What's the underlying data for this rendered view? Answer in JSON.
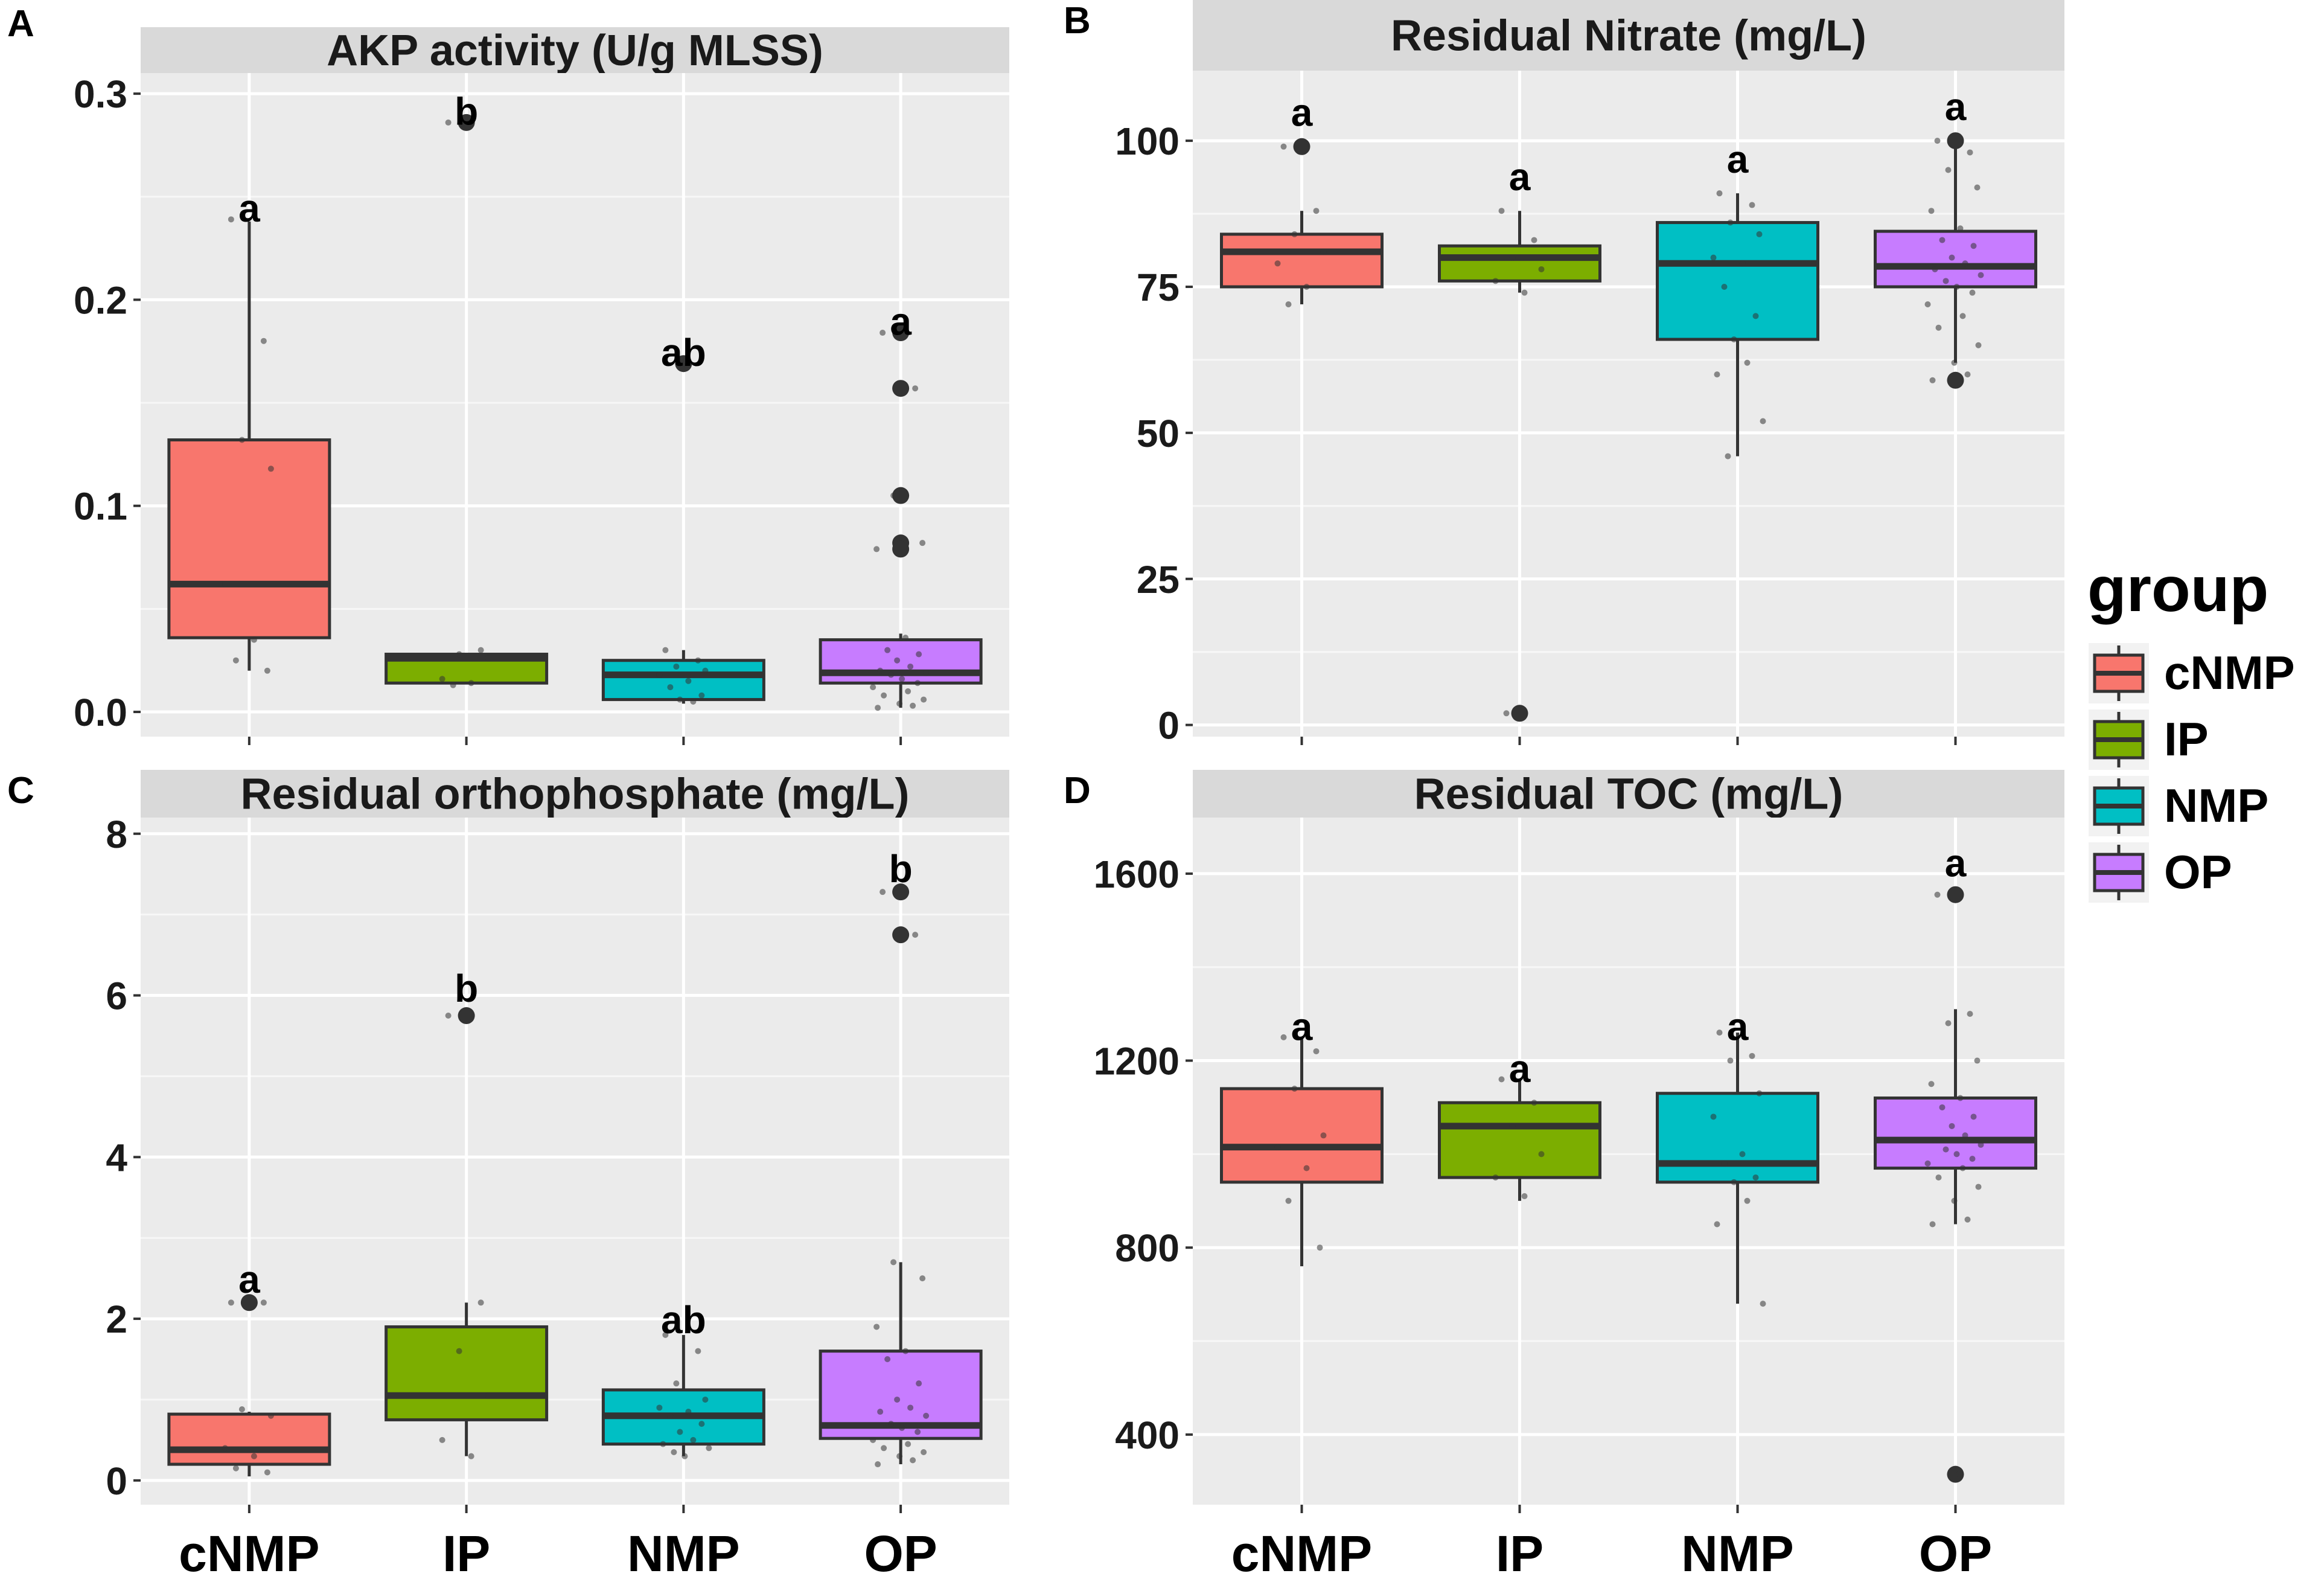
{
  "legend": {
    "title": "group",
    "groups": [
      {
        "name": "cNMP",
        "color": "#F8766D"
      },
      {
        "name": "IP",
        "color": "#7CAE00"
      },
      {
        "name": "NMP",
        "color": "#00BFC4"
      },
      {
        "name": "OP",
        "color": "#C77CFF"
      }
    ]
  },
  "chart_data": [
    {
      "type": "box",
      "panel_letter": "A",
      "title": "AKP activity (U/g MLSS)",
      "categories": [
        "cNMP",
        "IP",
        "NMP",
        "OP"
      ],
      "show_x_tick_labels": false,
      "ylim": [
        -0.012,
        0.31
      ],
      "y_ticks": [
        0.0,
        0.1,
        0.2,
        0.3
      ],
      "y_tick_labels": [
        "0.0",
        "0.1",
        "0.2",
        "0.3"
      ],
      "boxes": [
        {
          "q1": 0.036,
          "median": 0.062,
          "q3": 0.132,
          "whisker_low": 0.02,
          "whisker_high": 0.238,
          "outliers": []
        },
        {
          "q1": 0.014,
          "median": 0.026,
          "q3": 0.028,
          "whisker_low": 0.014,
          "whisker_high": 0.028,
          "outliers": [
            0.286
          ]
        },
        {
          "q1": 0.006,
          "median": 0.018,
          "q3": 0.025,
          "whisker_low": 0.004,
          "whisker_high": 0.03,
          "outliers": [
            0.169
          ]
        },
        {
          "q1": 0.014,
          "median": 0.019,
          "q3": 0.035,
          "whisker_low": 0.002,
          "whisker_high": 0.038,
          "outliers": [
            0.184,
            0.157,
            0.105,
            0.082,
            0.079
          ]
        }
      ],
      "points": [
        [
          0.239,
          0.18,
          0.132,
          0.118,
          0.062,
          0.035,
          0.025,
          0.02
        ],
        [
          0.286,
          0.03,
          0.028,
          0.026,
          0.016,
          0.014,
          0.013
        ],
        [
          0.03,
          0.025,
          0.022,
          0.02,
          0.018,
          0.015,
          0.012,
          0.008,
          0.006,
          0.005
        ],
        [
          0.184,
          0.157,
          0.105,
          0.082,
          0.079,
          0.036,
          0.03,
          0.028,
          0.025,
          0.022,
          0.02,
          0.019,
          0.018,
          0.016,
          0.014,
          0.012,
          0.01,
          0.008,
          0.006,
          0.004,
          0.003,
          0.002
        ]
      ],
      "letters": [
        "a",
        "b",
        "ab",
        "a"
      ],
      "letter_y": [
        0.245,
        0.292,
        0.175,
        0.19
      ]
    },
    {
      "type": "box",
      "panel_letter": "B",
      "title": "Residual Nitrate (mg/L)",
      "categories": [
        "cNMP",
        "IP",
        "NMP",
        "OP"
      ],
      "show_x_tick_labels": false,
      "ylim": [
        -2,
        112
      ],
      "y_ticks": [
        0,
        25,
        50,
        75,
        100
      ],
      "y_tick_labels": [
        "0",
        "25",
        "50",
        "75",
        "100"
      ],
      "boxes": [
        {
          "q1": 75,
          "median": 81,
          "q3": 84,
          "whisker_low": 72,
          "whisker_high": 88,
          "outliers": [
            99
          ]
        },
        {
          "q1": 76,
          "median": 80,
          "q3": 82,
          "whisker_low": 74,
          "whisker_high": 88,
          "outliers": [
            2
          ]
        },
        {
          "q1": 66,
          "median": 79,
          "q3": 86,
          "whisker_low": 46,
          "whisker_high": 91,
          "outliers": []
        },
        {
          "q1": 75,
          "median": 78.5,
          "q3": 84.5,
          "whisker_low": 62,
          "whisker_high": 100,
          "outliers": [
            100,
            59
          ]
        }
      ],
      "points": [
        [
          99,
          88,
          84,
          81,
          79,
          75,
          72
        ],
        [
          88,
          83,
          80,
          78,
          76,
          74,
          2
        ],
        [
          91,
          89,
          86,
          84,
          80,
          79,
          75,
          70,
          66,
          62,
          60,
          52,
          46
        ],
        [
          100,
          98,
          95,
          92,
          88,
          85,
          83,
          82,
          80,
          79,
          78,
          77,
          76,
          75,
          74,
          72,
          70,
          68,
          65,
          62,
          60,
          59
        ]
      ],
      "letters": [
        "a",
        "a",
        "a",
        "a"
      ],
      "letter_y": [
        105,
        94,
        97,
        106
      ]
    },
    {
      "type": "box",
      "panel_letter": "C",
      "title": "Residual orthophosphate (mg/L)",
      "categories": [
        "cNMP",
        "IP",
        "NMP",
        "OP"
      ],
      "show_x_tick_labels": true,
      "ylim": [
        -0.3,
        8.2
      ],
      "y_ticks": [
        0,
        2,
        4,
        6,
        8
      ],
      "y_tick_labels": [
        "0",
        "2",
        "4",
        "6",
        "8"
      ],
      "boxes": [
        {
          "q1": 0.2,
          "median": 0.38,
          "q3": 0.82,
          "whisker_low": 0.05,
          "whisker_high": 0.85,
          "outliers": [
            2.2
          ]
        },
        {
          "q1": 0.75,
          "median": 1.05,
          "q3": 1.9,
          "whisker_low": 0.3,
          "whisker_high": 2.2,
          "outliers": [
            5.75
          ]
        },
        {
          "q1": 0.45,
          "median": 0.8,
          "q3": 1.12,
          "whisker_low": 0.3,
          "whisker_high": 1.8,
          "outliers": []
        },
        {
          "q1": 0.52,
          "median": 0.68,
          "q3": 1.6,
          "whisker_low": 0.2,
          "whisker_high": 2.7,
          "outliers": [
            7.28,
            6.75
          ]
        }
      ],
      "points": [
        [
          2.2,
          2.2,
          0.88,
          0.8,
          0.4,
          0.3,
          0.15,
          0.1
        ],
        [
          5.75,
          2.2,
          1.6,
          1.05,
          0.5,
          0.3
        ],
        [
          1.8,
          1.6,
          1.2,
          1.0,
          0.9,
          0.85,
          0.8,
          0.7,
          0.6,
          0.5,
          0.45,
          0.4,
          0.35,
          0.3
        ],
        [
          7.28,
          6.75,
          2.7,
          2.5,
          1.9,
          1.6,
          1.5,
          1.2,
          1.0,
          0.9,
          0.85,
          0.8,
          0.7,
          0.65,
          0.6,
          0.5,
          0.45,
          0.4,
          0.35,
          0.3,
          0.25,
          0.2
        ]
      ],
      "letters": [
        "a",
        "b",
        "ab",
        "b"
      ],
      "letter_y": [
        2.5,
        6.1,
        2.0,
        7.58
      ]
    },
    {
      "type": "box",
      "panel_letter": "D",
      "title": "Residual TOC (mg/L)",
      "categories": [
        "cNMP",
        "IP",
        "NMP",
        "OP"
      ],
      "show_x_tick_labels": true,
      "ylim": [
        250,
        1720
      ],
      "y_ticks": [
        400,
        800,
        1200,
        1600
      ],
      "y_tick_labels": [
        "400",
        "800",
        "1200",
        "1600"
      ],
      "boxes": [
        {
          "q1": 940,
          "median": 1015,
          "q3": 1140,
          "whisker_low": 760,
          "whisker_high": 1250,
          "outliers": []
        },
        {
          "q1": 950,
          "median": 1060,
          "q3": 1110,
          "whisker_low": 900,
          "whisker_high": 1160,
          "outliers": []
        },
        {
          "q1": 940,
          "median": 980,
          "q3": 1130,
          "whisker_low": 680,
          "whisker_high": 1260,
          "outliers": []
        },
        {
          "q1": 970,
          "median": 1030,
          "q3": 1120,
          "whisker_low": 850,
          "whisker_high": 1310,
          "outliers": [
            1555,
            315
          ]
        }
      ],
      "points": [
        [
          1250,
          1220,
          1140,
          1040,
          1015,
          970,
          900,
          800
        ],
        [
          1160,
          1110,
          1060,
          1000,
          950,
          910
        ],
        [
          1260,
          1210,
          1200,
          1130,
          1080,
          1000,
          980,
          950,
          940,
          900,
          850,
          680
        ],
        [
          1555,
          1300,
          1280,
          1200,
          1150,
          1120,
          1100,
          1080,
          1060,
          1040,
          1030,
          1020,
          1010,
          1000,
          990,
          980,
          970,
          950,
          930,
          900,
          860,
          850,
          315
        ]
      ],
      "letters": [
        "a",
        "a",
        "a",
        "a"
      ],
      "letter_y": [
        1275,
        1185,
        1275,
        1625
      ]
    }
  ]
}
